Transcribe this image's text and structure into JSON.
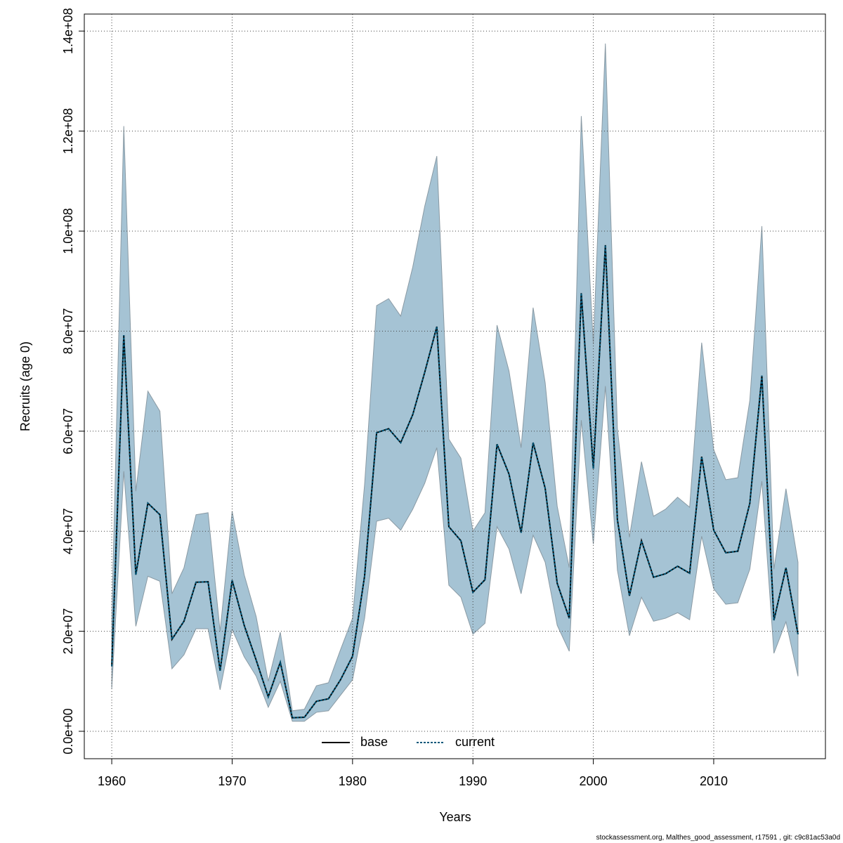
{
  "chart_data": {
    "type": "line",
    "x_label": "Years",
    "y_label": "Recruits (age 0)",
    "footer": "stockassessment.org, Malthes_good_assessment, r17591 , git: c9c81ac53a0d",
    "x": [
      1960,
      1961,
      1962,
      1963,
      1964,
      1965,
      1966,
      1967,
      1968,
      1969,
      1970,
      1971,
      1972,
      1973,
      1974,
      1975,
      1976,
      1977,
      1978,
      1979,
      1980,
      1981,
      1982,
      1983,
      1984,
      1985,
      1986,
      1987,
      1988,
      1989,
      1990,
      1991,
      1992,
      1993,
      1994,
      1995,
      1996,
      1997,
      1998,
      1999,
      2000,
      2001,
      2002,
      2003,
      2004,
      2005,
      2006,
      2007,
      2008,
      2009,
      2010,
      2011,
      2012,
      2013,
      2014,
      2015,
      2016,
      2017
    ],
    "series": [
      {
        "name": "base",
        "color": "#000000",
        "dash": "solid",
        "values": [
          13000000.0,
          79200000.0,
          31300000.0,
          45600000.0,
          43300000.0,
          18400000.0,
          22000000.0,
          29800000.0,
          29900000.0,
          12100000.0,
          30200000.0,
          21200000.0,
          14200000.0,
          6900000.0,
          13800000.0,
          2700000.0,
          2800000.0,
          6000000.0,
          6500000.0,
          10300000.0,
          15000000.0,
          31000000.0,
          59700000.0,
          60500000.0,
          57700000.0,
          63300000.0,
          71800000.0,
          80900000.0,
          40900000.0,
          38100000.0,
          27800000.0,
          30300000.0,
          57400000.0,
          51400000.0,
          39700000.0,
          57700000.0,
          48600000.0,
          29600000.0,
          22600000.0,
          87600000.0,
          52500000.0,
          97200000.0,
          42300000.0,
          27100000.0,
          38100000.0,
          30800000.0,
          31500000.0,
          33000000.0,
          31600000.0,
          54900000.0,
          40200000.0,
          35700000.0,
          36000000.0,
          45600000.0,
          71100000.0,
          22200000.0,
          32700000.0,
          19400000.0
        ]
      },
      {
        "name": "current",
        "color": "#00587a",
        "dash": "dotted",
        "values": [
          13000000.0,
          79200000.0,
          31300000.0,
          45600000.0,
          43300000.0,
          18400000.0,
          22000000.0,
          29800000.0,
          29900000.0,
          12100000.0,
          30200000.0,
          21200000.0,
          14200000.0,
          6900000.0,
          13800000.0,
          2700000.0,
          2800000.0,
          6000000.0,
          6500000.0,
          10300000.0,
          15000000.0,
          31000000.0,
          59700000.0,
          60500000.0,
          57700000.0,
          63300000.0,
          71800000.0,
          80900000.0,
          40900000.0,
          38100000.0,
          27800000.0,
          30300000.0,
          57400000.0,
          51400000.0,
          39700000.0,
          57700000.0,
          48600000.0,
          29600000.0,
          22600000.0,
          87600000.0,
          52500000.0,
          97200000.0,
          42300000.0,
          27100000.0,
          38100000.0,
          30800000.0,
          31500000.0,
          33000000.0,
          31600000.0,
          54900000.0,
          40200000.0,
          35700000.0,
          36000000.0,
          45600000.0,
          71100000.0,
          22200000.0,
          32700000.0,
          19400000.0
        ]
      }
    ],
    "band": {
      "color": "#a5c3d4",
      "upper": [
        22000000.0,
        121000000.0,
        48000000.0,
        68000000.0,
        64000000.0,
        27500000.0,
        32700000.0,
        43300000.0,
        43700000.0,
        20000000.0,
        44000000.0,
        31300000.0,
        22900000.0,
        10000000.0,
        19800000.0,
        4100000.0,
        4400000.0,
        9100000.0,
        9700000.0,
        16300000.0,
        22600000.0,
        49300000.0,
        85100000.0,
        86500000.0,
        83000000.0,
        92800000.0,
        105000000.0,
        115000000.0,
        58400000.0,
        54600000.0,
        40000000.0,
        43700000.0,
        81200000.0,
        72000000.0,
        56700000.0,
        84700000.0,
        69700000.0,
        45000000.0,
        32700000.0,
        123000000.0,
        77400000.0,
        137500000.0,
        60500000.0,
        38800000.0,
        53900000.0,
        43000000.0,
        44400000.0,
        46800000.0,
        44800000.0,
        77700000.0,
        56300000.0,
        50300000.0,
        50700000.0,
        66200000.0,
        101000000.0,
        32400000.0,
        48500000.0,
        33800000.0
      ],
      "lower": [
        8500000.0,
        52000000.0,
        21000000.0,
        31000000.0,
        30000000.0,
        12500000.0,
        15300000.0,
        20500000.0,
        20500000.0,
        8300000.0,
        20400000.0,
        14900000.0,
        11000000.0,
        4800000.0,
        10000000.0,
        2000000.0,
        2000000.0,
        3800000.0,
        4100000.0,
        7200000.0,
        10300000.0,
        22600000.0,
        42000000.0,
        42600000.0,
        40200000.0,
        44400000.0,
        49600000.0,
        56700000.0,
        29200000.0,
        26800000.0,
        19400000.0,
        21600000.0,
        40900000.0,
        36400000.0,
        27500000.0,
        39200000.0,
        33800000.0,
        21200000.0,
        16000000.0,
        62200000.0,
        37400000.0,
        69000000.0,
        32200000.0,
        19100000.0,
        26800000.0,
        22000000.0,
        22600000.0,
        23700000.0,
        22300000.0,
        39000000.0,
        28500000.0,
        25400000.0,
        25700000.0,
        32400000.0,
        50000000.0,
        15600000.0,
        21900000.0,
        11000000.0
      ]
    },
    "xlim": [
      1957.72,
      2019.28
    ],
    "ylim": [
      -5480000.0,
      143400000.0
    ],
    "xticks": [
      1960,
      1970,
      1980,
      1990,
      2000,
      2010
    ],
    "yticks": [
      {
        "value": 0,
        "label": "0.0e+00"
      },
      {
        "value": 20000000,
        "label": "2.0e+07"
      },
      {
        "value": 40000000,
        "label": "4.0e+07"
      },
      {
        "value": 60000000,
        "label": "6.0e+07"
      },
      {
        "value": 80000000,
        "label": "8.0e+07"
      },
      {
        "value": 100000000,
        "label": "1.0e+08"
      },
      {
        "value": 120000000,
        "label": "1.2e+08"
      },
      {
        "value": 140000000,
        "label": "1.4e+08"
      }
    ],
    "grid": true,
    "legend": "bottom"
  }
}
